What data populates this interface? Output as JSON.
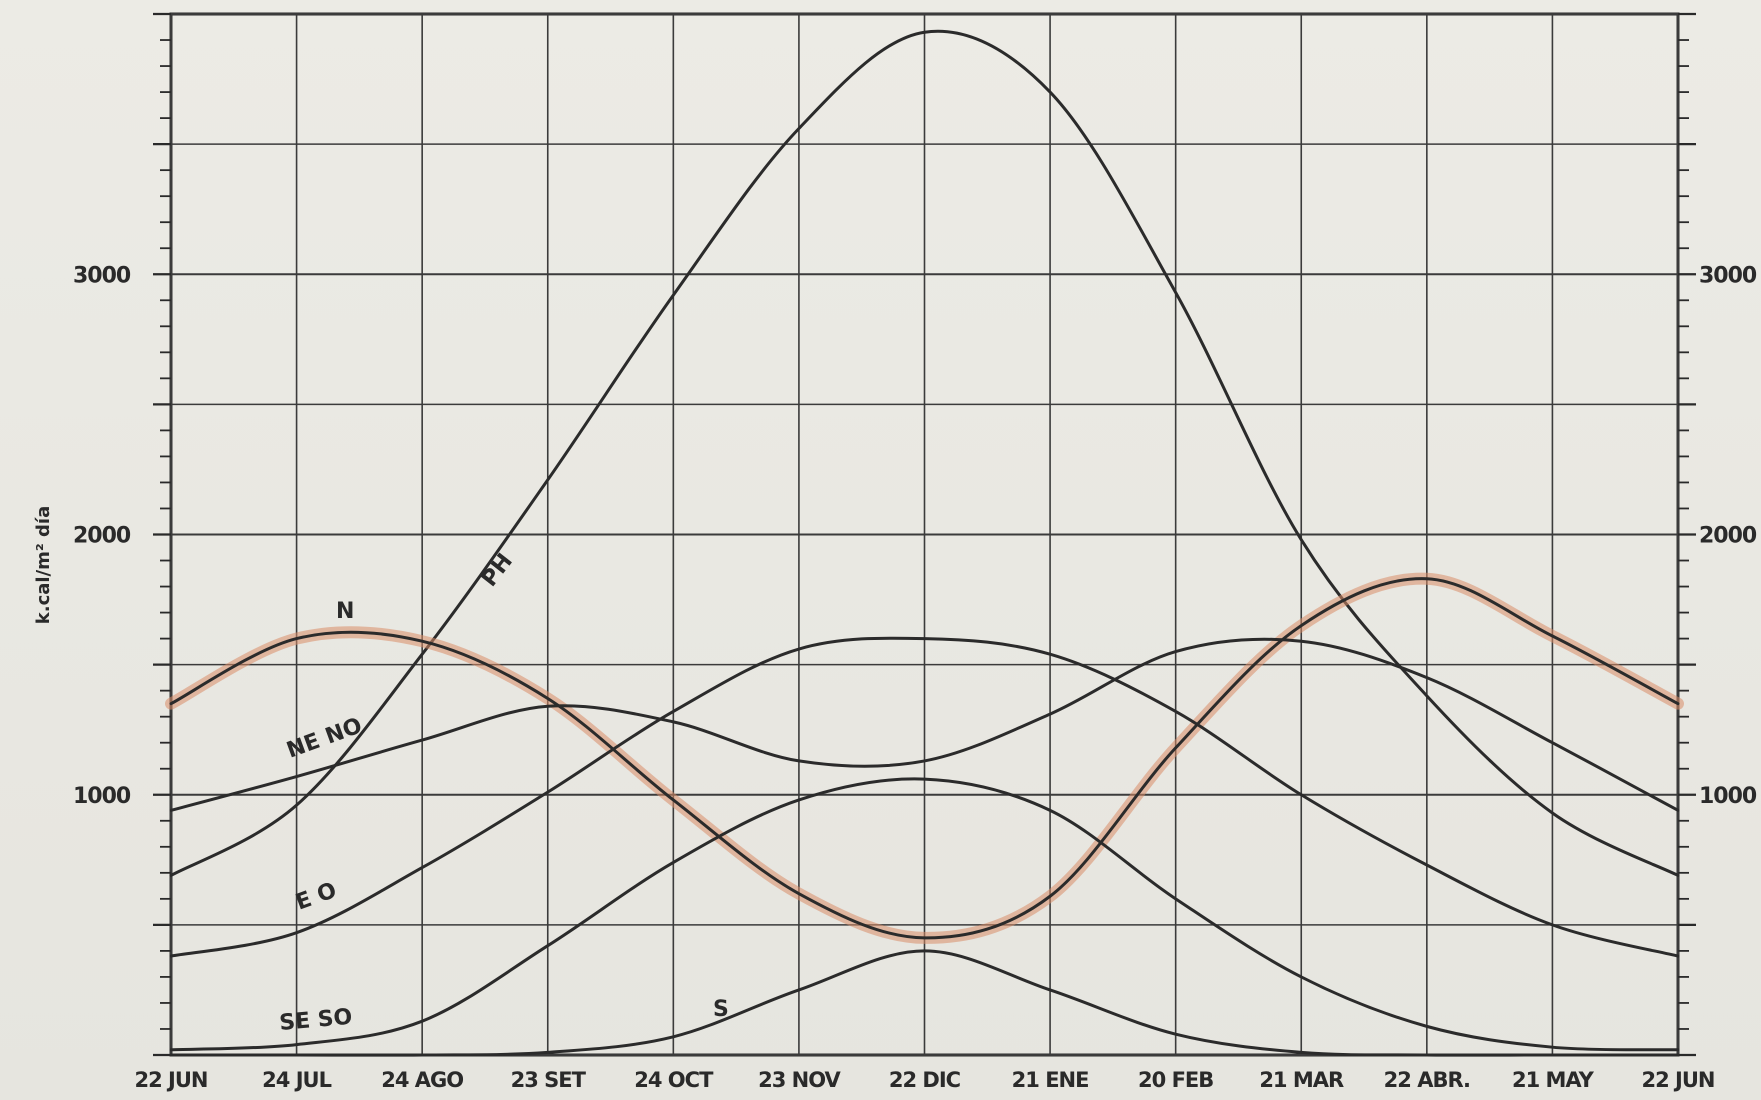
{
  "chart_data": {
    "type": "line",
    "ylabel": "k.cal/m² día",
    "left_y_ticks": [
      "1000",
      "2000",
      "3000"
    ],
    "right_y_ticks": [
      "1000",
      "2000",
      "3000"
    ],
    "y_tick_values": [
      1000,
      2000,
      3000
    ],
    "x_tick_labels": [
      "22 JUN",
      "24 JUL",
      "24 AGO",
      "23 SET",
      "24 OCT",
      "23 NOV",
      "22 DIC",
      "21 ENE",
      "20 FEB",
      "21 MAR",
      "22 ABR.",
      "21 MAY",
      "22 JUN"
    ],
    "ylim": [
      0,
      4000
    ],
    "grid": true,
    "series": [
      {
        "name": "PH",
        "label": "PH",
        "x": [
          "22 JUN",
          "24 JUL",
          "24 AGO",
          "23 SET",
          "24 OCT",
          "23 NOV",
          "22 DIC",
          "21 ENE",
          "20 FEB",
          "21 MAR",
          "22 ABR.",
          "21 MAY",
          "22 JUN"
        ],
        "values": [
          690,
          960,
          1540,
          2210,
          2920,
          3560,
          3930,
          3700,
          2930,
          1980,
          1380,
          930,
          690
        ],
        "color": "#2b2b2b"
      },
      {
        "name": "N",
        "label": "N",
        "x": [
          "22 JUN",
          "24 JUL",
          "24 AGO",
          "23 SET",
          "24 OCT",
          "23 NOV",
          "22 DIC",
          "21 ENE",
          "20 FEB",
          "21 MAR",
          "22 ABR.",
          "21 MAY",
          "22 JUN"
        ],
        "values": [
          1350,
          1600,
          1590,
          1370,
          980,
          620,
          450,
          610,
          1180,
          1650,
          1830,
          1610,
          1350
        ],
        "color": "#2b2b2b",
        "highlight": "#d98d67"
      },
      {
        "name": "NE NO",
        "label": "NE NO",
        "x": [
          "22 JUN",
          "24 JUL",
          "24 AGO",
          "23 SET",
          "24 OCT",
          "23 NOV",
          "22 DIC",
          "21 ENE",
          "20 FEB",
          "21 MAR",
          "22 ABR.",
          "21 MAY",
          "22 JUN"
        ],
        "values": [
          940,
          1070,
          1210,
          1340,
          1280,
          1130,
          1130,
          1310,
          1550,
          1590,
          1450,
          1200,
          940
        ],
        "color": "#2b2b2b"
      },
      {
        "name": "E O",
        "label": "E O",
        "x": [
          "22 JUN",
          "24 JUL",
          "24 AGO",
          "23 SET",
          "24 OCT",
          "23 NOV",
          "22 DIC",
          "21 ENE",
          "20 FEB",
          "21 MAR",
          "22 ABR.",
          "21 MAY",
          "22 JUN"
        ],
        "values": [
          380,
          470,
          720,
          1010,
          1320,
          1560,
          1600,
          1540,
          1320,
          1000,
          730,
          500,
          380
        ],
        "color": "#2b2b2b"
      },
      {
        "name": "SE SO",
        "label": "SE SO",
        "x": [
          "22 JUN",
          "24 JUL",
          "24 AGO",
          "23 SET",
          "24 OCT",
          "23 NOV",
          "22 DIC",
          "21 ENE",
          "20 FEB",
          "21 MAR",
          "22 ABR.",
          "21 MAY",
          "22 JUN"
        ],
        "values": [
          20,
          40,
          130,
          420,
          740,
          980,
          1060,
          940,
          600,
          300,
          110,
          30,
          20
        ],
        "color": "#2b2b2b"
      },
      {
        "name": "S",
        "label": "S",
        "x": [
          "22 JUN",
          "24 JUL",
          "24 AGO",
          "23 SET",
          "24 OCT",
          "23 NOV",
          "22 DIC",
          "21 ENE",
          "20 FEB",
          "21 MAR",
          "22 ABR.",
          "21 MAY",
          "22 JUN"
        ],
        "values": [
          0,
          0,
          0,
          10,
          70,
          250,
          400,
          250,
          80,
          10,
          0,
          0,
          0
        ],
        "color": "#2b2b2b"
      }
    ]
  }
}
